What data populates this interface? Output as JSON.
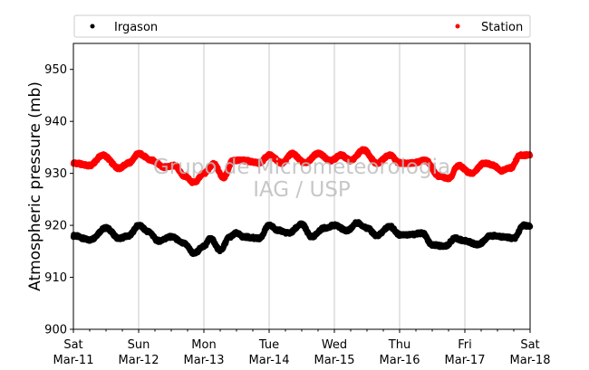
{
  "chart_data": {
    "type": "scatter",
    "ylabel": "Atmospheric pressure (mb)",
    "xlabel": "",
    "ylim": [
      900,
      955
    ],
    "y_ticks": [
      900,
      910,
      920,
      930,
      940,
      950
    ],
    "x_range_days": [
      11,
      18
    ],
    "x_ticks": [
      {
        "day": "Sat",
        "date": "Mar-11"
      },
      {
        "day": "Sun",
        "date": "Mar-12"
      },
      {
        "day": "Mon",
        "date": "Mar-13"
      },
      {
        "day": "Tue",
        "date": "Mar-14"
      },
      {
        "day": "Wed",
        "date": "Mar-15"
      },
      {
        "day": "Thu",
        "date": "Mar-16"
      },
      {
        "day": "Fri",
        "date": "Mar-17"
      },
      {
        "day": "Sat",
        "date": "Mar-18"
      }
    ],
    "grid": "vertical",
    "legend_position": "top",
    "watermark": [
      "Grupo de Micrometeorologia",
      "IAG / USP"
    ],
    "series": [
      {
        "name": "Irgason",
        "color": "#000000",
        "x": [
          11.0,
          11.25,
          11.5,
          11.7,
          11.85,
          12.0,
          12.15,
          12.3,
          12.5,
          12.7,
          12.85,
          13.0,
          13.1,
          13.25,
          13.4,
          13.5,
          13.6,
          13.85,
          14.0,
          14.15,
          14.3,
          14.5,
          14.65,
          14.85,
          15.0,
          15.2,
          15.35,
          15.5,
          15.65,
          15.85,
          16.0,
          16.15,
          16.35,
          16.5,
          16.7,
          16.85,
          17.0,
          17.2,
          17.4,
          17.6,
          17.75,
          17.9,
          18.0
        ],
        "y": [
          918.0,
          917.2,
          919.5,
          917.5,
          918.0,
          920.0,
          918.8,
          917.0,
          917.8,
          916.5,
          914.6,
          916.0,
          917.5,
          915.2,
          917.8,
          918.5,
          917.8,
          917.5,
          920.0,
          919.0,
          918.5,
          920.2,
          917.8,
          919.5,
          920.0,
          919.0,
          920.5,
          919.5,
          918.0,
          919.8,
          918.2,
          918.2,
          918.5,
          916.2,
          916.0,
          917.5,
          917.0,
          916.3,
          918.0,
          917.8,
          917.5,
          920.0,
          919.8
        ]
      },
      {
        "name": "Station",
        "color": "#ff0000",
        "x": [
          11.0,
          11.25,
          11.45,
          11.7,
          11.85,
          12.0,
          12.2,
          12.4,
          12.55,
          12.7,
          12.85,
          13.0,
          13.15,
          13.3,
          13.45,
          13.6,
          13.85,
          14.0,
          14.2,
          14.35,
          14.55,
          14.75,
          14.95,
          15.1,
          15.25,
          15.45,
          15.65,
          15.85,
          16.0,
          16.2,
          16.4,
          16.6,
          16.75,
          16.9,
          17.1,
          17.3,
          17.45,
          17.55,
          17.7,
          17.85,
          18.0
        ],
        "y": [
          932.0,
          931.5,
          933.5,
          931.0,
          932.0,
          933.8,
          932.5,
          931.2,
          931.5,
          929.5,
          928.2,
          930.0,
          931.8,
          929.2,
          932.5,
          932.5,
          932.0,
          933.5,
          932.0,
          933.8,
          932.0,
          933.8,
          932.5,
          933.5,
          932.5,
          934.5,
          932.0,
          933.5,
          932.0,
          932.0,
          932.5,
          929.5,
          929.0,
          931.5,
          930.0,
          932.0,
          931.5,
          930.5,
          931.0,
          933.5,
          933.5
        ]
      }
    ]
  }
}
